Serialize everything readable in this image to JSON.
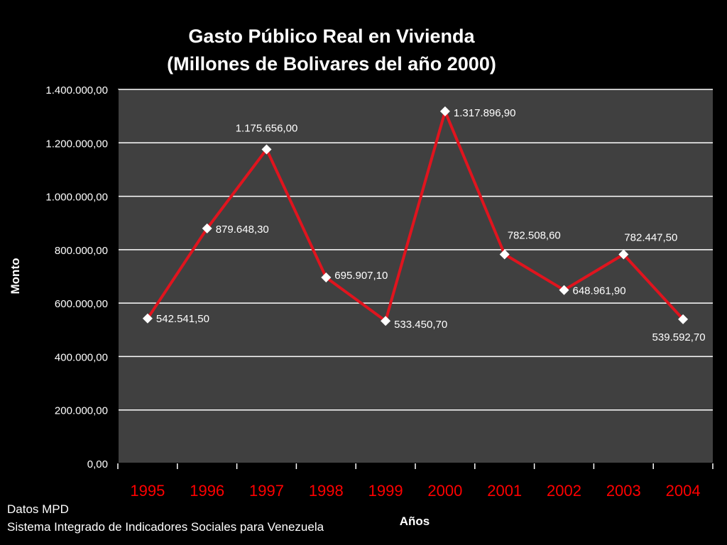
{
  "chart_data": {
    "type": "line",
    "title": "Gasto Público Real en Vivienda",
    "subtitle": "(Millones de Bolivares del año 2000)",
    "xlabel": "Años",
    "ylabel": "Monto",
    "categories": [
      "1995",
      "1996",
      "1997",
      "1998",
      "1999",
      "2000",
      "2001",
      "2002",
      "2003",
      "2004"
    ],
    "series": [
      {
        "values": [
          542541.5,
          879648.3,
          1175656.0,
          695907.1,
          533450.7,
          1317896.9,
          782508.6,
          648961.9,
          782447.5,
          539592.7
        ],
        "labels": [
          "542.541,50",
          "879.648,30",
          "1.175.656,00",
          "695.907,10",
          "533.450,70",
          "1.317.896,90",
          "782.508,60",
          "648.961,90",
          "782.447,50",
          "539.592,70"
        ]
      }
    ],
    "ylim": [
      0,
      1400000
    ],
    "yticks": [
      0,
      200000,
      400000,
      600000,
      800000,
      1000000,
      1200000,
      1400000
    ],
    "ytick_labels": [
      "0,00",
      "200.000,00",
      "400.000,00",
      "600.000,00",
      "800.000,00",
      "1.000.000,00",
      "1.200.000,00",
      "1.400.000,00"
    ],
    "grid": true,
    "legend": "none",
    "colors": {
      "background": "#000000",
      "plot_area": "#404040",
      "line": "#e0141e",
      "marker": "#ffffff",
      "gridline": "#ffffff",
      "xtick_text": "#ff0000"
    }
  },
  "source": {
    "line1": "Datos MPD",
    "line2": "Sistema Integrado de Indicadores Sociales para Venezuela"
  }
}
